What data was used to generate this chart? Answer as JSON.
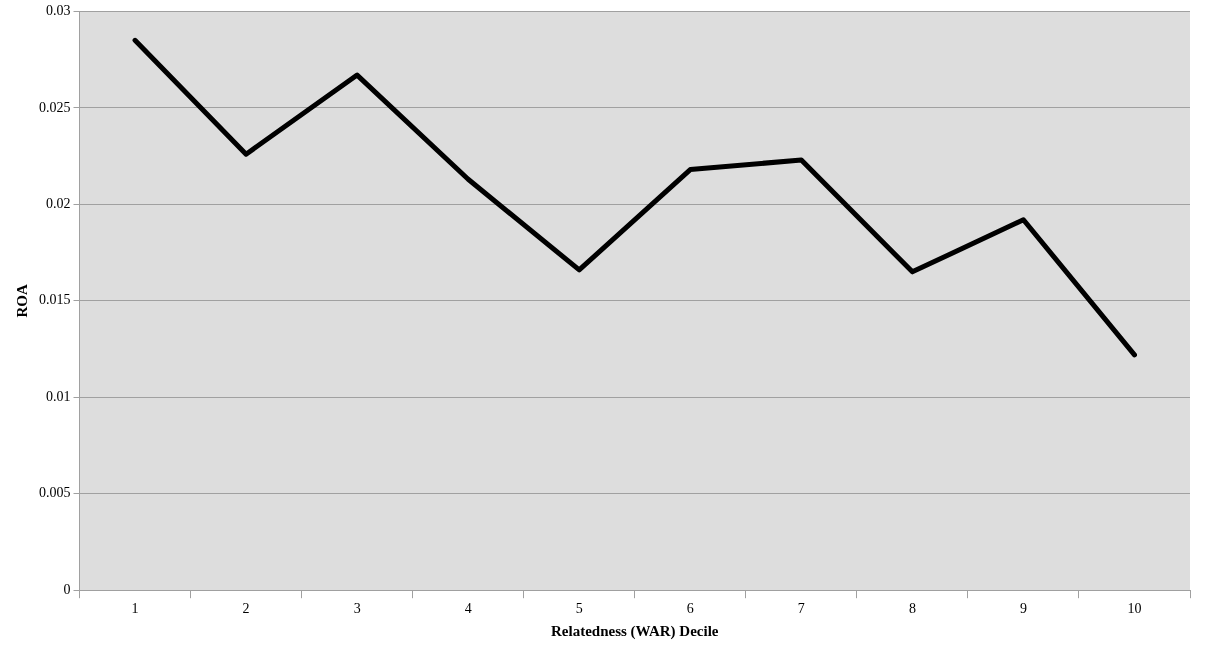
{
  "chart_data": {
    "type": "line",
    "xlabel": "Relatedness (WAR) Decile",
    "ylabel": "ROA",
    "categories": [
      "1",
      "2",
      "3",
      "4",
      "5",
      "6",
      "7",
      "8",
      "9",
      "10"
    ],
    "series": [
      {
        "color": "#000000",
        "values": [
          0.0285,
          0.0226,
          0.0267,
          0.0213,
          0.0166,
          0.0218,
          0.0223,
          0.0165,
          0.0192,
          0.0122
        ]
      }
    ],
    "ylim": [
      0,
      0.03
    ],
    "yticks": [
      0,
      0.005,
      0.01,
      0.015,
      0.02,
      0.025,
      0.03
    ],
    "grid": "y",
    "legend": false,
    "marker": "none",
    "line_style": "solid"
  }
}
